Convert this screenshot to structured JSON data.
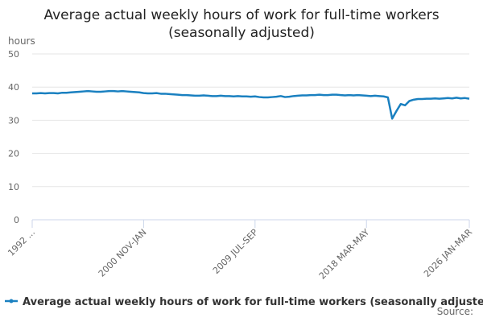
{
  "chart_data": {
    "type": "line",
    "title": "Average actual weekly hours of work for full-time workers (seasonally adjusted)",
    "y_label": "hours",
    "source": "Source:",
    "categories": [
      "1992 ...",
      null,
      null,
      null,
      null,
      null,
      null,
      null,
      null,
      null,
      null,
      null,
      null,
      null,
      null,
      null,
      null,
      null,
      null,
      null,
      null,
      null,
      null,
      null,
      null,
      null,
      "2000 NOV-JAN",
      null,
      null,
      null,
      null,
      null,
      null,
      null,
      null,
      null,
      null,
      null,
      null,
      null,
      null,
      null,
      null,
      null,
      null,
      null,
      null,
      null,
      null,
      null,
      null,
      null,
      "2009 JUL-SEP",
      null,
      null,
      null,
      null,
      null,
      null,
      null,
      null,
      null,
      null,
      null,
      null,
      null,
      null,
      null,
      null,
      null,
      null,
      null,
      null,
      null,
      null,
      null,
      null,
      null,
      "2018 MAR-MAY",
      null,
      null,
      null,
      null,
      null,
      null,
      null,
      null,
      null,
      null,
      null,
      null,
      null,
      null,
      null,
      null,
      null,
      null,
      null,
      null,
      null,
      null,
      null,
      "2026 JAN-MAR"
    ],
    "series": [
      {
        "name": "Average actual weekly hours of work for full-time workers (seasonally adjusted)",
        "color": "#1a80c0",
        "values": [
          38.1,
          38.1,
          38.2,
          38.1,
          38.2,
          38.2,
          38.1,
          38.3,
          38.3,
          38.4,
          38.5,
          38.6,
          38.7,
          38.8,
          38.7,
          38.6,
          38.6,
          38.7,
          38.8,
          38.8,
          38.7,
          38.8,
          38.7,
          38.6,
          38.5,
          38.4,
          38.2,
          38.1,
          38.1,
          38.2,
          38.0,
          38.0,
          37.9,
          37.8,
          37.7,
          37.6,
          37.6,
          37.5,
          37.4,
          37.4,
          37.5,
          37.4,
          37.3,
          37.3,
          37.4,
          37.3,
          37.3,
          37.2,
          37.3,
          37.2,
          37.2,
          37.1,
          37.2,
          37.0,
          36.9,
          36.9,
          37.0,
          37.1,
          37.3,
          37.0,
          37.1,
          37.3,
          37.4,
          37.5,
          37.5,
          37.6,
          37.6,
          37.7,
          37.6,
          37.6,
          37.7,
          37.7,
          37.6,
          37.5,
          37.6,
          37.5,
          37.6,
          37.5,
          37.4,
          37.3,
          37.4,
          37.3,
          37.2,
          36.9,
          30.5,
          32.8,
          34.9,
          34.5,
          35.8,
          36.2,
          36.4,
          36.4,
          36.5,
          36.5,
          36.6,
          36.5,
          36.6,
          36.7,
          36.6,
          36.8,
          36.6,
          36.7,
          36.5
        ]
      }
    ],
    "ylim": [
      0,
      50
    ],
    "yticks": [
      0,
      10,
      20,
      30,
      40,
      50
    ],
    "grid": true
  }
}
